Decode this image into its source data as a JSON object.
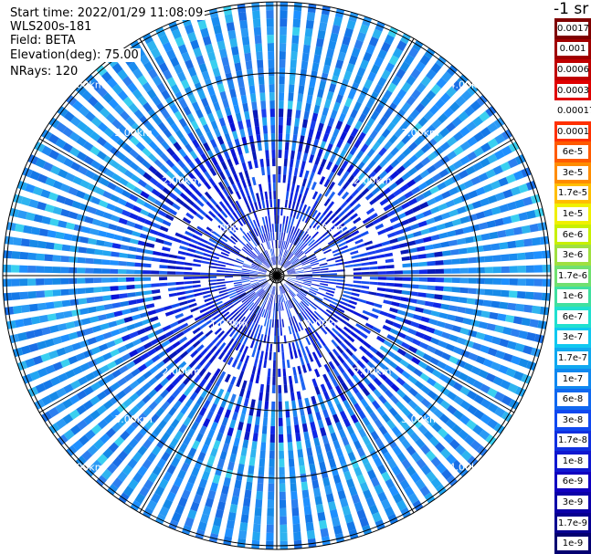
{
  "info": {
    "start_time": "Start time: 2022/01/29 11:08:09",
    "instrument": "WLS200s-181",
    "field": "Field: BETA",
    "elevation": "Elevation(deg): 75.00",
    "nrays": "NRays: 120"
  },
  "unit_label": "-1 sr",
  "range_rings": [
    "1.00km",
    "2.00km",
    "3.00km",
    "4.00km"
  ],
  "colorbar": {
    "labels": [
      "0.0017",
      "0.001",
      "0.0006",
      "0.0003",
      "0.00017",
      "0.0001",
      "6e-5",
      "3e-5",
      "1.7e-5",
      "1e-5",
      "6e-6",
      "3e-6",
      "1.7e-6",
      "1e-6",
      "6e-7",
      "3e-7",
      "1.7e-7",
      "1e-7",
      "6e-8",
      "3e-8",
      "1.7e-8",
      "1e-8",
      "6e-9",
      "3e-9",
      "1.7e-9",
      "1e-9"
    ],
    "colors": [
      "#7f0000",
      "#a00000",
      "#c00000",
      "#e00000",
      "#ffffff",
      "#ff3000",
      "#ff5a00",
      "#ff8c00",
      "#ffbe00",
      "#f0f000",
      "#c8f000",
      "#a0e040",
      "#70e070",
      "#40e0a0",
      "#20e0d0",
      "#10c8f0",
      "#10a8f0",
      "#1088f0",
      "#1068f0",
      "#1048f0",
      "#1030e0",
      "#1018d0",
      "#1000c0",
      "#0c00a8",
      "#080090",
      "#040070"
    ]
  },
  "map_view": {
    "field": "BETA",
    "nrays": 120,
    "elevation_deg": 75.0,
    "max_range_km": 4.0,
    "dominant_range": "1e-8 to 1e-7 sr-1",
    "near_field": "darker blue, ~1e-9 to 1e-8 sr-1"
  }
}
